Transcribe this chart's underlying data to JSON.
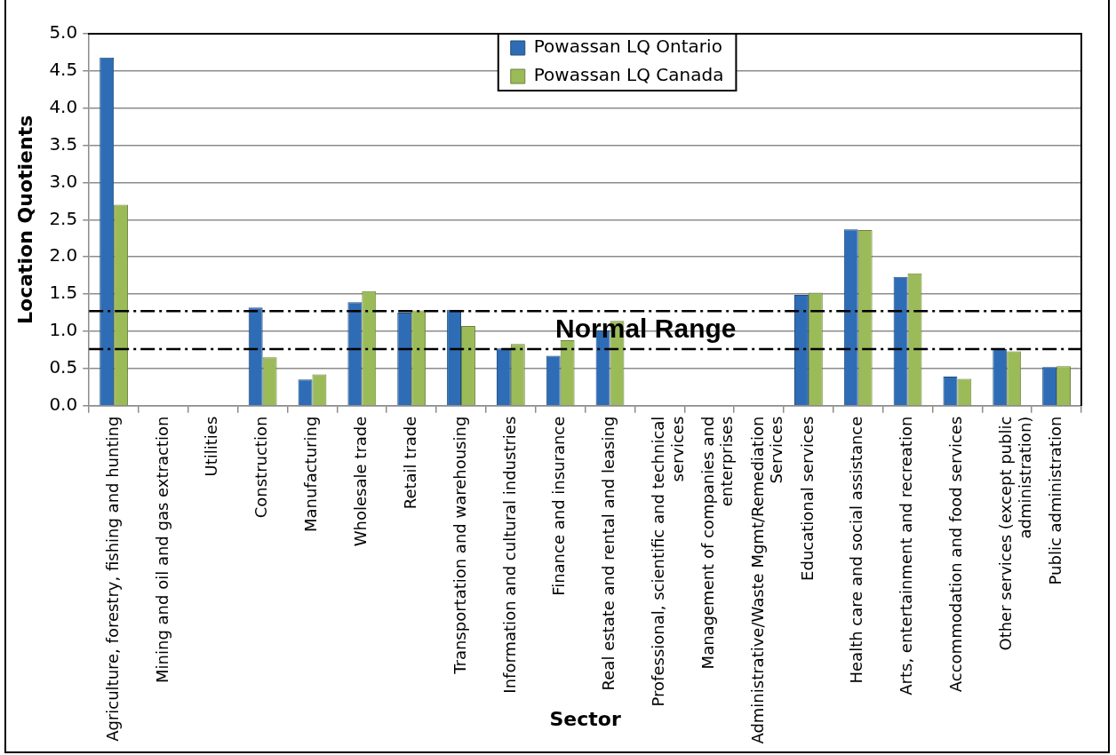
{
  "chart_data": {
    "type": "bar",
    "xlabel": "Sector",
    "ylabel": "Location Quotients",
    "categories": [
      "Agriculture, forestry, fishing and hunting",
      "Mining and oil and gas extraction",
      "Utilities",
      "Construction",
      "Manufacturing",
      "Wholesale trade",
      "Retail trade",
      "Transportation and warehousing",
      "Information and cultural industries",
      "Finance and insurance",
      "Real estate and rental and leasing",
      "Professional, scientific and technical services",
      "Management of companies and enterprises",
      "Administrative/Waste Mgmt/Remediation Services",
      "Educational services",
      "Health care and social assistance",
      "Arts, entertainment and recreation",
      "Accommodation and food services",
      "Other services (except public administration)",
      "Public administration"
    ],
    "series": [
      {
        "name": "Powassan LQ Ontario",
        "color": "#2e6db5",
        "values": [
          4.68,
          null,
          null,
          1.32,
          0.35,
          1.39,
          1.25,
          1.29,
          0.77,
          0.67,
          1.01,
          null,
          null,
          null,
          1.49,
          2.37,
          1.73,
          0.39,
          0.76,
          0.52
        ]
      },
      {
        "name": "Powassan LQ Canada",
        "color": "#9bbb59",
        "values": [
          2.7,
          null,
          null,
          0.65,
          0.42,
          1.54,
          1.28,
          1.07,
          0.83,
          0.88,
          1.14,
          null,
          null,
          null,
          1.52,
          2.36,
          1.78,
          0.36,
          0.73,
          0.53
        ]
      }
    ],
    "ylim": [
      0,
      5
    ],
    "yticks": [
      {
        "value": 0,
        "label": "0.0"
      },
      {
        "value": 0.5,
        "label": "0.5"
      },
      {
        "value": 1,
        "label": "1.0"
      },
      {
        "value": 1.5,
        "label": "1.5"
      },
      {
        "value": 2,
        "label": "2.0"
      },
      {
        "value": 2.5,
        "label": "2.5"
      },
      {
        "value": 3,
        "label": "3.0"
      },
      {
        "value": 3.5,
        "label": "3.5"
      },
      {
        "value": 4,
        "label": "4.0"
      },
      {
        "value": 4.5,
        "label": "4.5"
      },
      {
        "value": 5,
        "label": "5.0"
      }
    ],
    "ref_lines": [
      {
        "axis": "y",
        "value": 1.27,
        "color": "#000000",
        "line_style": "dashed"
      },
      {
        "axis": "y",
        "value": 0.76,
        "color": "#000000",
        "line_style": "dashed"
      }
    ],
    "annotations": [
      "Normal Range"
    ],
    "grid": "y",
    "legend": "top"
  }
}
